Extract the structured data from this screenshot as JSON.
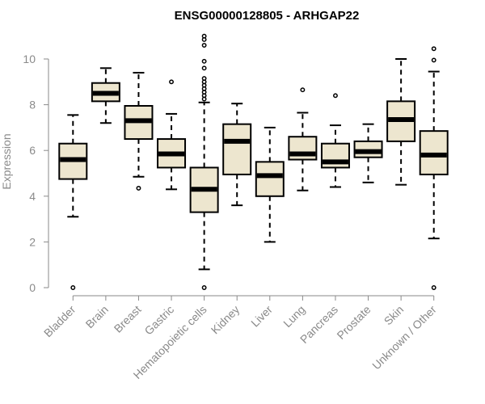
{
  "chart_data": {
    "type": "boxplot",
    "title": "ENSG00000128805 - ARHGAP22",
    "xlabel": "",
    "ylabel": "Expression",
    "ylim": [
      0,
      10
    ],
    "yticks": [
      0,
      2,
      4,
      6,
      8,
      10
    ],
    "box_color": "#ede6cf",
    "categories": [
      "Bladder",
      "Brain",
      "Breast",
      "Gastric",
      "Hematopoietic cells",
      "Kidney",
      "Liver",
      "Lung",
      "Pancreas",
      "Prostate",
      "Skin",
      "Unknown / Other"
    ],
    "series": [
      {
        "name": "Bladder",
        "min": 3.1,
        "q1": 4.75,
        "median": 5.6,
        "q3": 6.3,
        "max": 7.55,
        "outliers": [
          0.0
        ]
      },
      {
        "name": "Brain",
        "min": 7.2,
        "q1": 8.15,
        "median": 8.5,
        "q3": 8.95,
        "max": 9.6,
        "outliers": []
      },
      {
        "name": "Breast",
        "min": 4.85,
        "q1": 6.5,
        "median": 7.3,
        "q3": 7.95,
        "max": 9.4,
        "outliers": [
          4.35
        ]
      },
      {
        "name": "Gastric",
        "min": 4.3,
        "q1": 5.25,
        "median": 5.85,
        "q3": 6.5,
        "max": 7.6,
        "outliers": [
          9.0
        ]
      },
      {
        "name": "Hematopoietic cells",
        "min": 0.8,
        "q1": 3.3,
        "median": 4.3,
        "q3": 5.25,
        "max": 8.1,
        "outliers": [
          0.0,
          8.25,
          8.4,
          8.55,
          8.7,
          8.85,
          9.0,
          9.15,
          9.6,
          9.9,
          10.6,
          10.85,
          11.0
        ]
      },
      {
        "name": "Kidney",
        "min": 3.6,
        "q1": 4.95,
        "median": 6.4,
        "q3": 7.15,
        "max": 8.05,
        "outliers": []
      },
      {
        "name": "Liver",
        "min": 2.0,
        "q1": 4.0,
        "median": 4.9,
        "q3": 5.5,
        "max": 7.0,
        "outliers": []
      },
      {
        "name": "Lung",
        "min": 4.25,
        "q1": 5.6,
        "median": 5.85,
        "q3": 6.6,
        "max": 7.65,
        "outliers": [
          8.65
        ]
      },
      {
        "name": "Pancreas",
        "min": 4.4,
        "q1": 5.25,
        "median": 5.5,
        "q3": 6.3,
        "max": 7.1,
        "outliers": [
          8.4
        ]
      },
      {
        "name": "Prostate",
        "min": 4.6,
        "q1": 5.7,
        "median": 5.95,
        "q3": 6.4,
        "max": 7.15,
        "outliers": []
      },
      {
        "name": "Skin",
        "min": 4.5,
        "q1": 6.4,
        "median": 7.35,
        "q3": 8.15,
        "max": 10.0,
        "outliers": []
      },
      {
        "name": "Unknown / Other",
        "min": 2.15,
        "q1": 4.95,
        "median": 5.8,
        "q3": 6.85,
        "max": 9.45,
        "outliers": [
          0.0,
          9.95,
          10.45
        ]
      }
    ]
  }
}
